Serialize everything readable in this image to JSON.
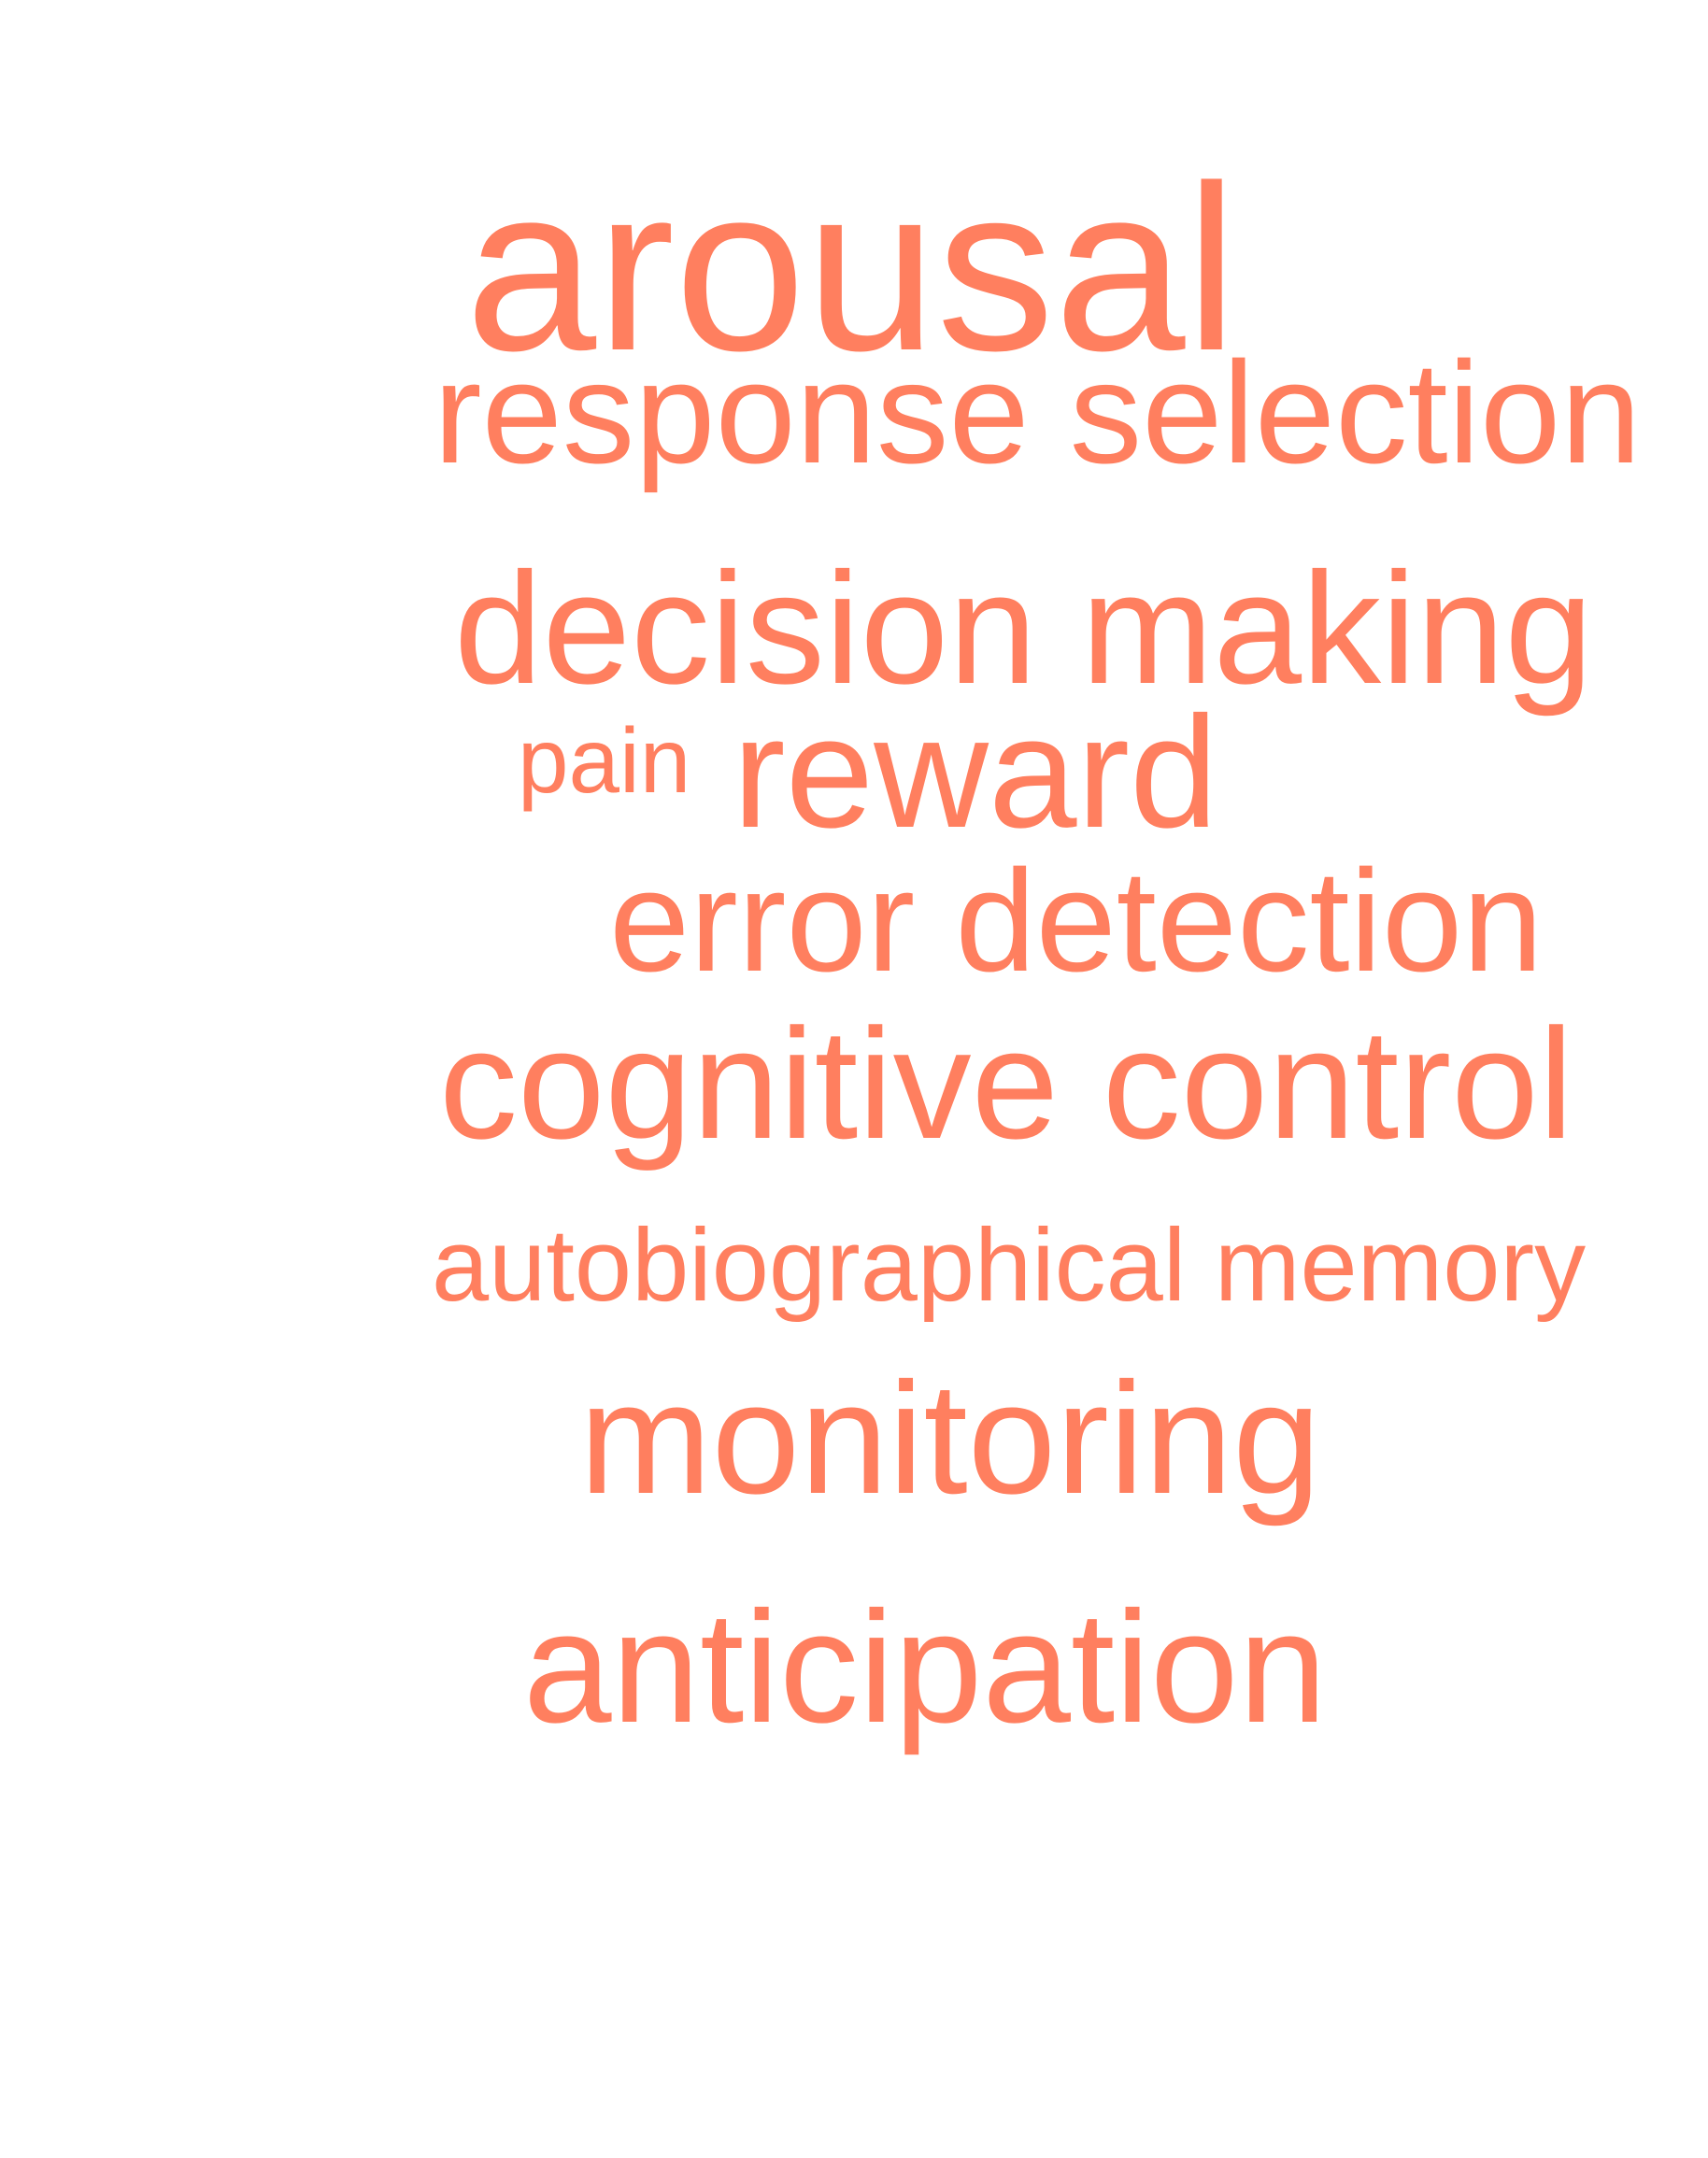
{
  "word_cloud": {
    "color": "#FF7F5F",
    "words": [
      {
        "text": "arousal"
      },
      {
        "text": "response selection"
      },
      {
        "text": "decision making"
      },
      {
        "text": "pain"
      },
      {
        "text": "reward"
      },
      {
        "text": "error detection"
      },
      {
        "text": "cognitive control"
      },
      {
        "text": "autobiographical memory"
      },
      {
        "text": "monitoring"
      },
      {
        "text": "anticipation"
      }
    ]
  }
}
